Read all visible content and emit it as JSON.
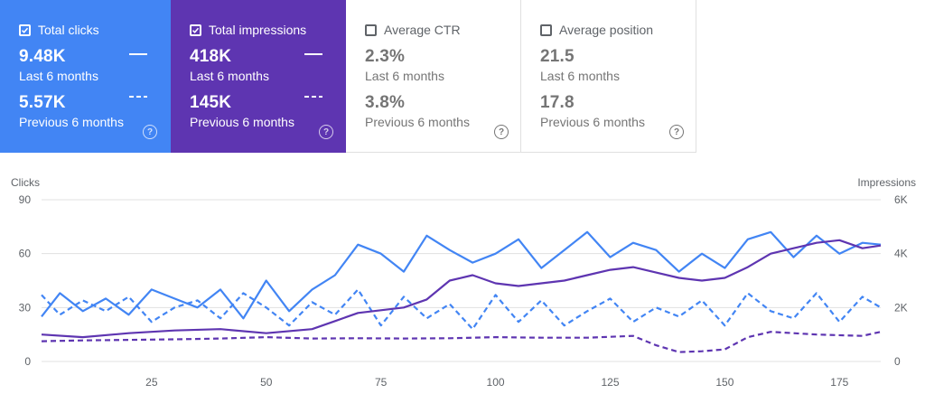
{
  "cards": [
    {
      "key": "clicks",
      "label": "Total clicks",
      "checked": true,
      "current_value": "9.48K",
      "current_label": "Last 6 months",
      "previous_value": "5.57K",
      "previous_label": "Previous 6 months",
      "color": "#4285f4"
    },
    {
      "key": "impr",
      "label": "Total impressions",
      "checked": true,
      "current_value": "418K",
      "current_label": "Last 6 months",
      "previous_value": "145K",
      "previous_label": "Previous 6 months",
      "color": "#5e35b1"
    },
    {
      "key": "ctr",
      "label": "Average CTR",
      "checked": false,
      "current_value": "2.3%",
      "current_label": "Last 6 months",
      "previous_value": "3.8%",
      "previous_label": "Previous 6 months",
      "color": "#ffffff"
    },
    {
      "key": "pos",
      "label": "Average position",
      "checked": false,
      "current_value": "21.5",
      "current_label": "Last 6 months",
      "previous_value": "17.8",
      "previous_label": "Previous 6 months",
      "color": "#ffffff"
    }
  ],
  "chart": {
    "left_axis_title": "Clicks",
    "right_axis_title": "Impressions",
    "left_ticks": [
      "90",
      "60",
      "30",
      "0"
    ],
    "right_ticks": [
      "6K",
      "4K",
      "2K",
      "0"
    ],
    "x_ticks": [
      "25",
      "50",
      "75",
      "100",
      "125",
      "150",
      "175"
    ]
  },
  "chart_data": {
    "type": "line",
    "x_range": [
      1,
      184
    ],
    "left_ylim": [
      0,
      90
    ],
    "right_ylim": [
      0,
      6000
    ],
    "series": [
      {
        "name": "Total clicks",
        "axis": "left",
        "style": "solid",
        "color": "#4285f4",
        "x": [
          1,
          5,
          10,
          15,
          20,
          25,
          30,
          35,
          40,
          45,
          50,
          55,
          60,
          65,
          70,
          75,
          80,
          85,
          90,
          95,
          100,
          105,
          110,
          115,
          120,
          125,
          130,
          135,
          140,
          145,
          150,
          155,
          160,
          165,
          170,
          175,
          180,
          184
        ],
        "values": [
          25,
          38,
          28,
          35,
          26,
          40,
          35,
          30,
          40,
          24,
          45,
          28,
          40,
          48,
          65,
          60,
          50,
          70,
          62,
          55,
          60,
          68,
          52,
          62,
          72,
          58,
          66,
          62,
          50,
          60,
          52,
          68,
          72,
          58,
          70,
          60,
          66,
          65
        ]
      },
      {
        "name": "Total clicks",
        "axis": "left",
        "style": "dashed",
        "color": "#4285f4",
        "x": [
          1,
          5,
          10,
          15,
          20,
          25,
          30,
          35,
          40,
          45,
          50,
          55,
          60,
          65,
          70,
          75,
          80,
          85,
          90,
          95,
          100,
          105,
          110,
          115,
          120,
          125,
          130,
          135,
          140,
          145,
          150,
          155,
          160,
          165,
          170,
          175,
          180,
          184
        ],
        "values": [
          37,
          26,
          34,
          28,
          36,
          22,
          30,
          34,
          24,
          38,
          30,
          20,
          33,
          26,
          40,
          20,
          36,
          24,
          32,
          18,
          37,
          22,
          34,
          20,
          28,
          35,
          22,
          30,
          25,
          34,
          20,
          38,
          28,
          24,
          38,
          22,
          36,
          30
        ]
      },
      {
        "name": "Total impressions",
        "axis": "right",
        "style": "solid",
        "color": "#5e35b1",
        "x": [
          1,
          10,
          20,
          30,
          40,
          50,
          60,
          65,
          70,
          75,
          80,
          85,
          90,
          95,
          100,
          105,
          110,
          115,
          120,
          125,
          130,
          135,
          140,
          145,
          150,
          155,
          160,
          165,
          170,
          175,
          180,
          184
        ],
        "values": [
          1000,
          900,
          1050,
          1150,
          1200,
          1050,
          1200,
          1500,
          1800,
          1900,
          2000,
          2300,
          3000,
          3200,
          2900,
          2800,
          2900,
          3000,
          3200,
          3400,
          3500,
          3300,
          3100,
          3000,
          3100,
          3500,
          4000,
          4200,
          4400,
          4500,
          4200,
          4300
        ]
      },
      {
        "name": "Total impressions",
        "axis": "right",
        "style": "dashed",
        "color": "#5e35b1",
        "x": [
          1,
          10,
          20,
          30,
          40,
          50,
          60,
          70,
          80,
          90,
          100,
          110,
          120,
          130,
          135,
          140,
          145,
          150,
          155,
          160,
          170,
          180,
          184
        ],
        "values": [
          750,
          780,
          800,
          820,
          850,
          900,
          850,
          860,
          850,
          860,
          900,
          880,
          880,
          950,
          600,
          350,
          380,
          450,
          900,
          1100,
          1000,
          950,
          1100
        ]
      }
    ]
  }
}
